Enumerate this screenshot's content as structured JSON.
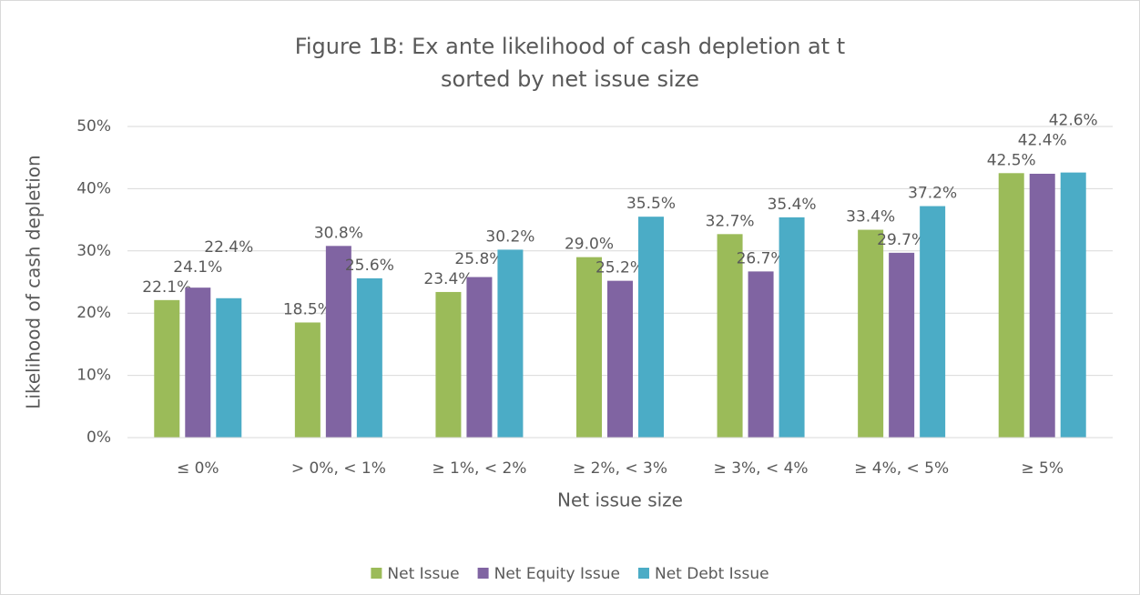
{
  "chart_data": {
    "type": "bar",
    "title": "Figure 1B: Ex ante likelihood of cash depletion at t",
    "subtitle": "sorted by net issue size",
    "x_label": "Net issue size",
    "y_label": "Likelihood of cash depletion",
    "categories": [
      "≤ 0%",
      "> 0%, < 1%",
      "≥ 1%, < 2%",
      "≥ 2%, < 3%",
      "≥ 3%, < 4%",
      "≥ 4%, < 5%",
      "≥ 5%"
    ],
    "series": [
      {
        "name": "Net Issue",
        "color": "#9bbb59",
        "values": [
          22.1,
          18.5,
          23.4,
          29.0,
          32.7,
          33.4,
          42.5
        ],
        "value_labels": [
          "22.1%",
          "18.5%",
          "23.4%",
          "29.0%",
          "32.7%",
          "33.4%",
          "42.5%"
        ]
      },
      {
        "name": "Net Equity Issue",
        "color": "#8064a2",
        "values": [
          24.1,
          30.8,
          25.8,
          25.2,
          26.7,
          29.7,
          42.4
        ],
        "value_labels": [
          "24.1%",
          "30.8%",
          "25.8%",
          "25.2%",
          "26.7%",
          "29.7%",
          "42.4%"
        ]
      },
      {
        "name": "Net Debt Issue",
        "color": "#4bacc6",
        "values": [
          22.4,
          25.6,
          30.2,
          35.5,
          35.4,
          37.2,
          42.6
        ],
        "value_labels": [
          "22.4%",
          "25.6%",
          "30.2%",
          "35.5%",
          "35.4%",
          "37.2%",
          "42.6%"
        ]
      }
    ],
    "ylim": [
      0,
      50
    ],
    "yticks": [
      {
        "value": 0,
        "label": "0%"
      },
      {
        "value": 10,
        "label": "10%"
      },
      {
        "value": 20,
        "label": "20%"
      },
      {
        "value": 30,
        "label": "30%"
      },
      {
        "value": 40,
        "label": "40%"
      },
      {
        "value": 50,
        "label": "50%"
      }
    ],
    "grid": true,
    "legend": "bottom"
  }
}
